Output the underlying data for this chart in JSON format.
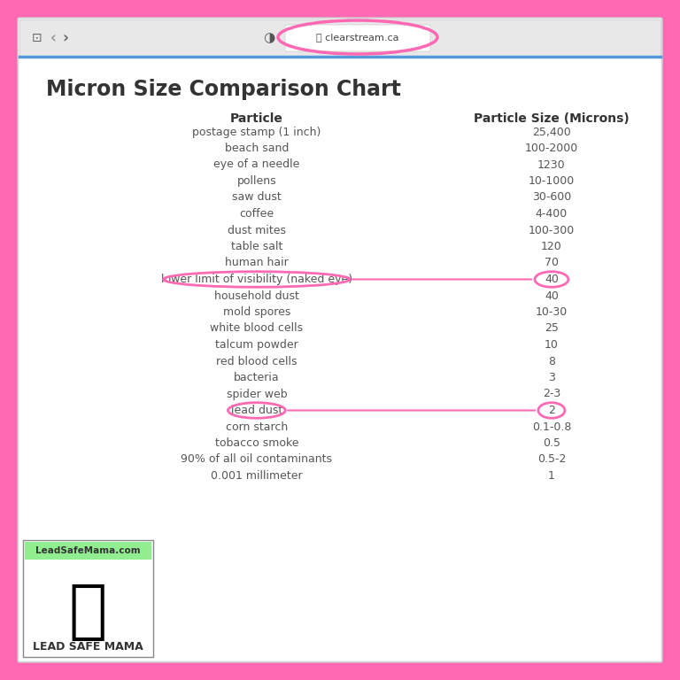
{
  "title": "Micron Size Comparison Chart",
  "col1_header": "Particle",
  "col2_header": "Particle Size (Microns)",
  "rows": [
    [
      "postage stamp (1 inch)",
      "25,400"
    ],
    [
      "beach sand",
      "100-2000"
    ],
    [
      "eye of a needle",
      "1230"
    ],
    [
      "pollens",
      "10-1000"
    ],
    [
      "saw dust",
      "30-600"
    ],
    [
      "coffee",
      "4-400"
    ],
    [
      "dust mites",
      "100-300"
    ],
    [
      "table salt",
      "120"
    ],
    [
      "human hair",
      "70"
    ],
    [
      "lower limit of visibility (naked eye)",
      "40"
    ],
    [
      "household dust",
      "40"
    ],
    [
      "mold spores",
      "10-30"
    ],
    [
      "white blood cells",
      "25"
    ],
    [
      "talcum powder",
      "10"
    ],
    [
      "red blood cells",
      "8"
    ],
    [
      "bacteria",
      "3"
    ],
    [
      "spider web",
      "2-3"
    ],
    [
      "lead dust",
      "2"
    ],
    [
      "corn starch",
      "0.1-0.8"
    ],
    [
      "tobacco smoke",
      "0.5"
    ],
    [
      "90% of all oil contaminants",
      "0.5-2"
    ],
    [
      "0.001 millimeter",
      "1"
    ]
  ],
  "highlighted_rows": [
    9,
    17
  ],
  "outer_bg_color": "#FF69B4",
  "browser_bg_color": "#f0f0f0",
  "content_bg_color": "#ffffff",
  "title_color": "#333333",
  "header_color": "#333333",
  "row_text_color": "#555555",
  "highlight_circle_color": "#FF69B4",
  "url_text": "clearstream.ca",
  "leadsafe_text": "LeadSafeMama.com",
  "lead_safe_mama_text": "LEAD SAFE MAMA"
}
